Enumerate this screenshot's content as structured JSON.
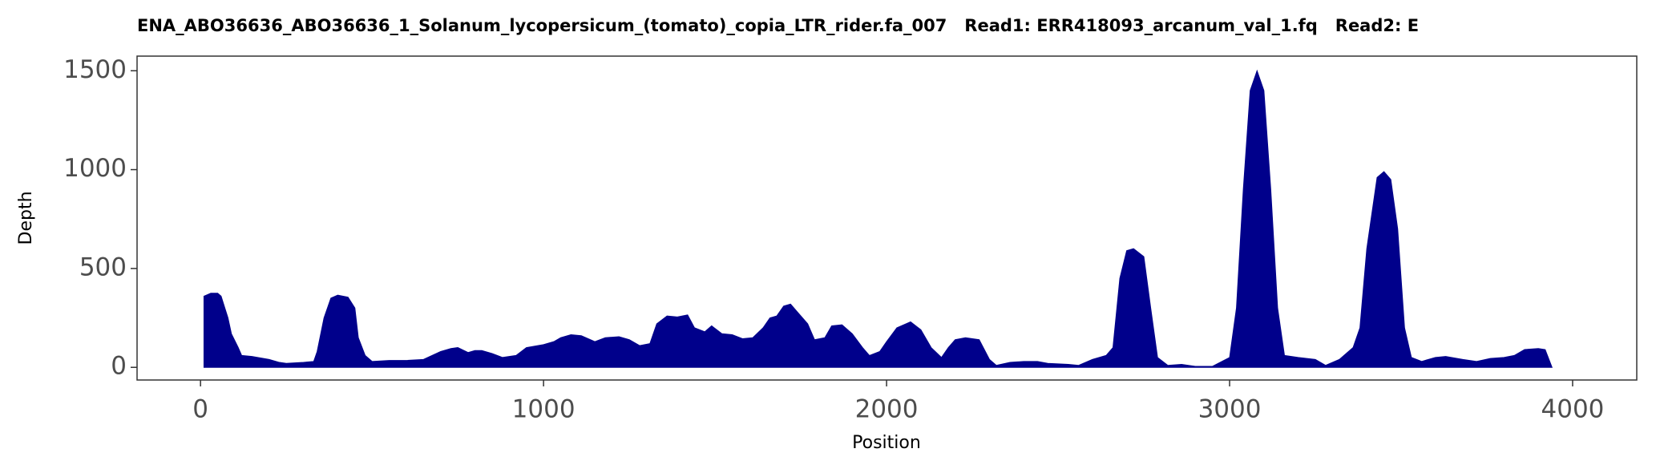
{
  "chart_data": {
    "type": "area",
    "title": "ENA_ABO36636_ABO36636_1_Solanum_lycopersicum_(tomato)_copia_LTR_rider.fa_007   Read1: ERR418093_arcanum_val_1.fq   Read2: E",
    "x_label": "Position",
    "y_label": "Depth",
    "color": "#00008b",
    "xlim": [
      -185,
      4187
    ],
    "xticks": [
      0,
      1000,
      2000,
      3000,
      4000
    ],
    "ylim": [
      -64,
      1574
    ],
    "yticks": [
      0,
      500,
      1000,
      1500
    ],
    "x": [
      10,
      30,
      50,
      60,
      80,
      90,
      110,
      120,
      150,
      200,
      230,
      250,
      300,
      330,
      340,
      360,
      380,
      400,
      430,
      450,
      460,
      480,
      500,
      550,
      600,
      650,
      700,
      730,
      750,
      780,
      800,
      820,
      850,
      880,
      900,
      920,
      950,
      1000,
      1030,
      1050,
      1080,
      1110,
      1150,
      1180,
      1220,
      1250,
      1280,
      1310,
      1330,
      1360,
      1390,
      1420,
      1440,
      1470,
      1490,
      1520,
      1550,
      1580,
      1610,
      1640,
      1660,
      1680,
      1700,
      1720,
      1740,
      1770,
      1790,
      1820,
      1840,
      1870,
      1900,
      1930,
      1950,
      1980,
      2000,
      2030,
      2070,
      2100,
      2130,
      2160,
      2180,
      2200,
      2230,
      2270,
      2300,
      2320,
      2360,
      2400,
      2440,
      2470,
      2530,
      2560,
      2600,
      2640,
      2660,
      2680,
      2700,
      2720,
      2750,
      2770,
      2790,
      2820,
      2860,
      2900,
      2950,
      3000,
      3020,
      3040,
      3060,
      3080,
      3100,
      3120,
      3140,
      3160,
      3200,
      3250,
      3280,
      3320,
      3360,
      3380,
      3400,
      3430,
      3450,
      3470,
      3490,
      3510,
      3530,
      3560,
      3600,
      3630,
      3680,
      3720,
      3760,
      3800,
      3830,
      3860,
      3900,
      3920,
      3940
    ],
    "values": [
      360,
      375,
      375,
      360,
      250,
      170,
      100,
      60,
      55,
      40,
      25,
      20,
      25,
      30,
      80,
      250,
      350,
      365,
      355,
      300,
      150,
      60,
      30,
      35,
      35,
      40,
      80,
      95,
      100,
      75,
      85,
      85,
      70,
      50,
      55,
      60,
      100,
      115,
      130,
      150,
      165,
      160,
      130,
      150,
      155,
      140,
      110,
      120,
      220,
      260,
      255,
      265,
      200,
      180,
      210,
      170,
      165,
      145,
      150,
      200,
      250,
      260,
      310,
      320,
      280,
      220,
      140,
      150,
      210,
      215,
      170,
      100,
      60,
      80,
      130,
      200,
      230,
      190,
      100,
      50,
      100,
      140,
      150,
      140,
      40,
      10,
      25,
      30,
      30,
      20,
      15,
      10,
      40,
      60,
      100,
      450,
      590,
      600,
      560,
      300,
      50,
      10,
      15,
      5,
      5,
      50,
      300,
      900,
      1400,
      1500,
      1400,
      900,
      300,
      60,
      50,
      40,
      10,
      40,
      100,
      200,
      600,
      960,
      990,
      950,
      700,
      200,
      50,
      30,
      50,
      55,
      40,
      30,
      45,
      50,
      60,
      90,
      95,
      90,
      0
    ]
  }
}
